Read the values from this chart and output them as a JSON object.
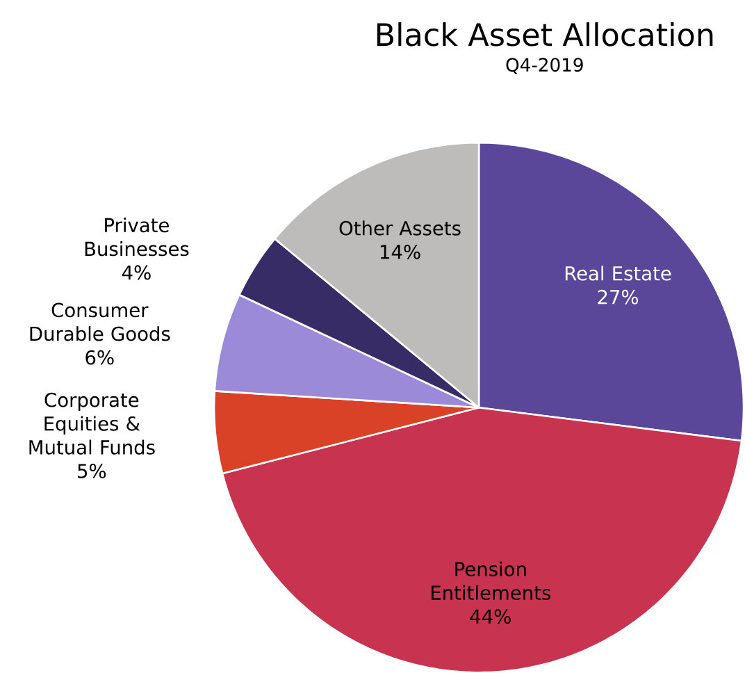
{
  "chart_data": {
    "type": "pie",
    "title": "Black Asset Allocation",
    "subtitle": "Q4-2019",
    "categories": [
      "Real Estate",
      "Pension Entitlements",
      "Corporate Equities & Mutual Funds",
      "Consumer Durable Goods",
      "Private Businesses",
      "Other Assets"
    ],
    "values": [
      27,
      44,
      5,
      6,
      4,
      14
    ],
    "value_labels": [
      "27%",
      "44%",
      "5%",
      "6%",
      "4%",
      "14%"
    ],
    "colors": [
      "#5a479a",
      "#c8334f",
      "#d94227",
      "#9b8ad8",
      "#372c66",
      "#bdbcba"
    ]
  }
}
